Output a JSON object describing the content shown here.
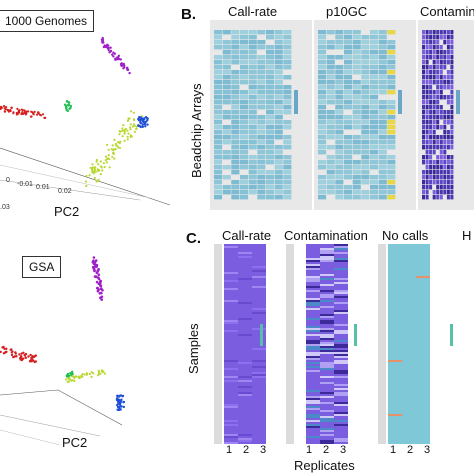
{
  "panel_b": {
    "letter": "B.",
    "y_axis_label": "Beadchip Arrays",
    "titles": [
      "Call-rate",
      "p10GC",
      "Contamin"
    ]
  },
  "panel_c": {
    "letter": "C.",
    "y_axis_label": "Samples",
    "x_axis_label": "Replicates",
    "titles": [
      "Call-rate",
      "Contamination",
      "No calls",
      "H"
    ],
    "replicate_ticks": [
      "1",
      "2",
      "3"
    ]
  },
  "top_pca": {
    "label": "1000 Genomes",
    "axis_label": "PC2",
    "ticks": [
      "0",
      "-0.01",
      "0.01",
      "0.02",
      "0.03"
    ],
    "tick_03": ".03"
  },
  "bottom_pca": {
    "label": "GSA",
    "axis_label": "PC2"
  },
  "colors": {
    "red": "#d62020",
    "green": "#1fbf50",
    "purple": "#a020c8",
    "lime": "#b8d830",
    "blue": "#1f4fd8",
    "heat_purple": "#7b5de0",
    "heat_cyan": "#7ec8d8"
  }
}
